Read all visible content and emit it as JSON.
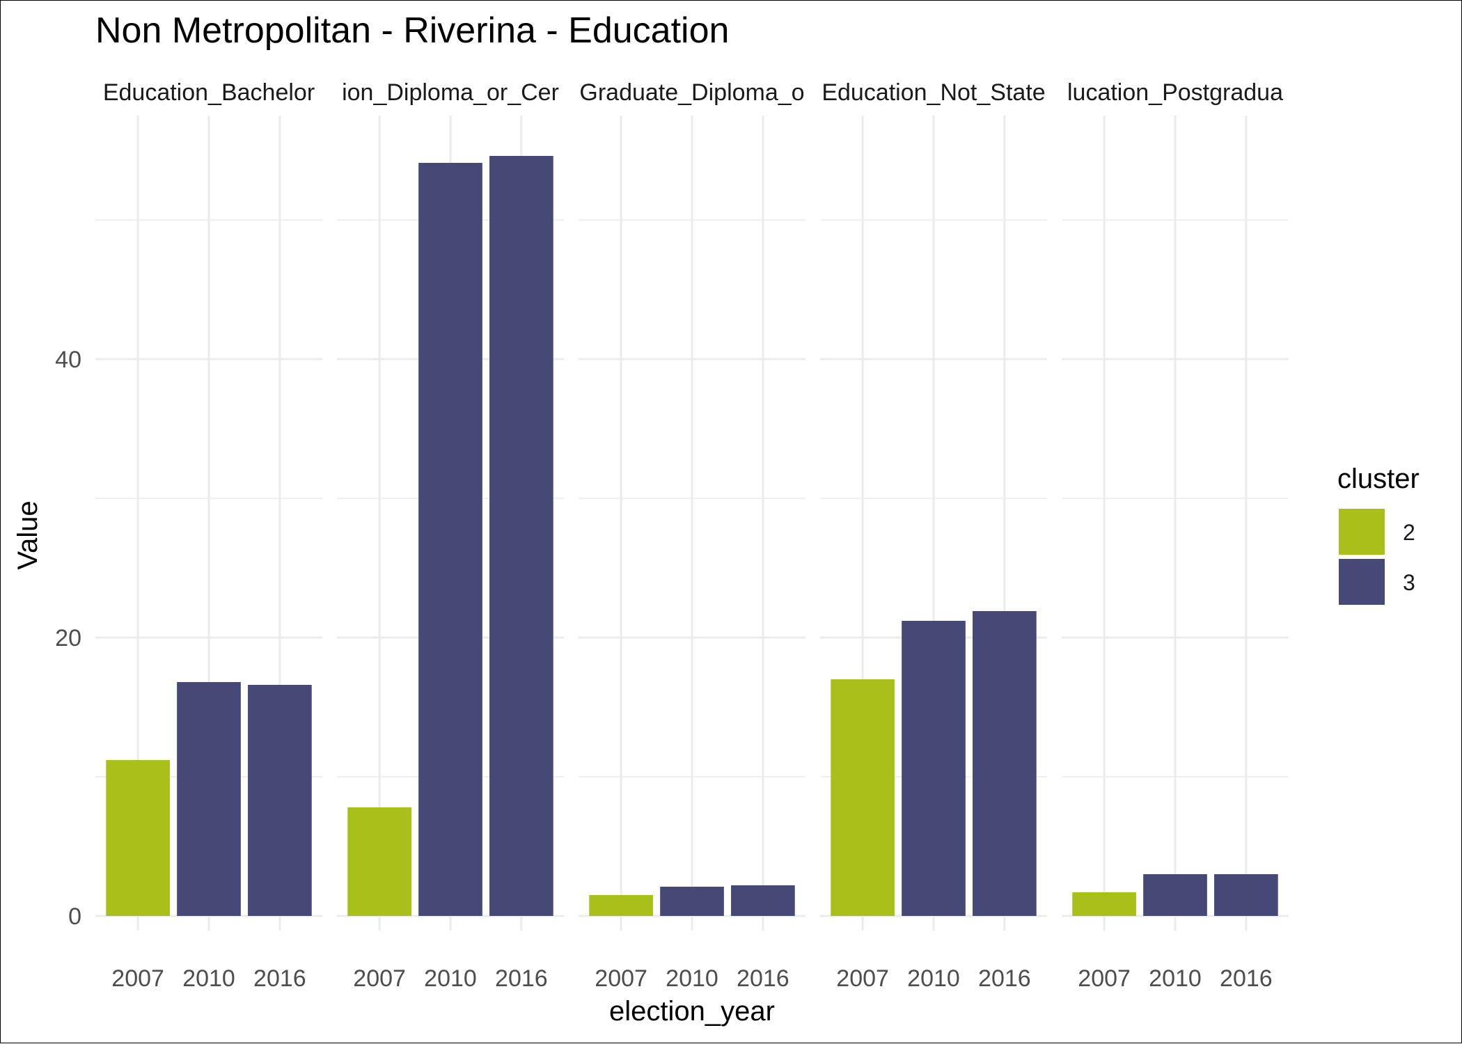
{
  "chart_data": {
    "type": "bar",
    "title": "Non Metropolitan - Riverina - Education",
    "xlabel": "election_year",
    "ylabel": "Value",
    "ylim": [
      0,
      57
    ],
    "yticks": [
      0,
      20,
      40
    ],
    "categories": [
      "2007",
      "2010",
      "2016"
    ],
    "grid": true,
    "facets": [
      {
        "label": "Education_Bachelor",
        "values": [
          11.2,
          16.8,
          16.6
        ],
        "clusters": [
          "2",
          "3",
          "3"
        ]
      },
      {
        "label": "ion_Diploma_or_Cer",
        "values": [
          7.8,
          54.1,
          54.6
        ],
        "clusters": [
          "2",
          "3",
          "3"
        ]
      },
      {
        "label": "Graduate_Diploma_o",
        "values": [
          1.5,
          2.1,
          2.2
        ],
        "clusters": [
          "2",
          "3",
          "3"
        ]
      },
      {
        "label": "Education_Not_State",
        "values": [
          17.0,
          21.2,
          21.9
        ],
        "clusters": [
          "2",
          "3",
          "3"
        ]
      },
      {
        "label": "lucation_Postgradua",
        "values": [
          1.7,
          3.0,
          3.0
        ],
        "clusters": [
          "2",
          "3",
          "3"
        ]
      }
    ],
    "legend": {
      "title": "cluster",
      "position": "right",
      "items": [
        {
          "label": "2",
          "color": "#a9c01a"
        },
        {
          "label": "3",
          "color": "#464975"
        }
      ]
    }
  }
}
